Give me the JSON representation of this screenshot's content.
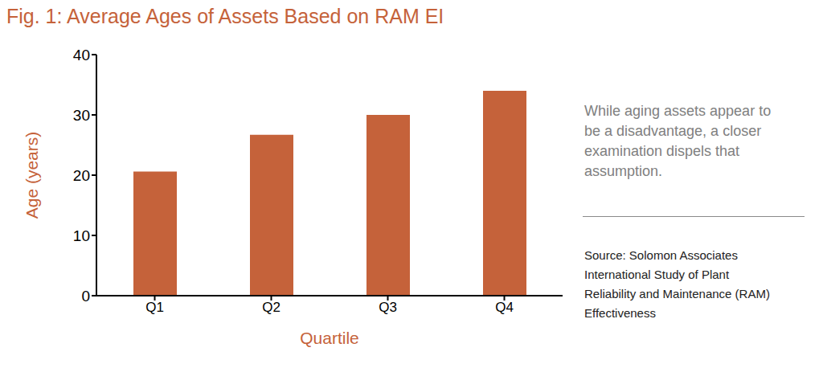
{
  "chart_data": {
    "type": "bar",
    "title": "Fig. 1: Average Ages of Assets Based on RAM EI",
    "x_label": "Quartile",
    "y_label": "Age (years)",
    "categories": [
      "Q1",
      "Q2",
      "Q3",
      "Q4"
    ],
    "values": [
      20.6,
      26.7,
      30,
      34
    ],
    "color": "#c5623a",
    "ylim": [
      0,
      40
    ],
    "yticks": [
      0,
      10,
      20,
      30,
      40
    ],
    "grid": false,
    "annotations": [
      "While aging assets appear to be a disadvantage, a closer examination dispels that assumption.",
      "Source: Solomon Associates International Study of Plant Reliability and Maintenance (RAM) Effectiveness"
    ]
  }
}
